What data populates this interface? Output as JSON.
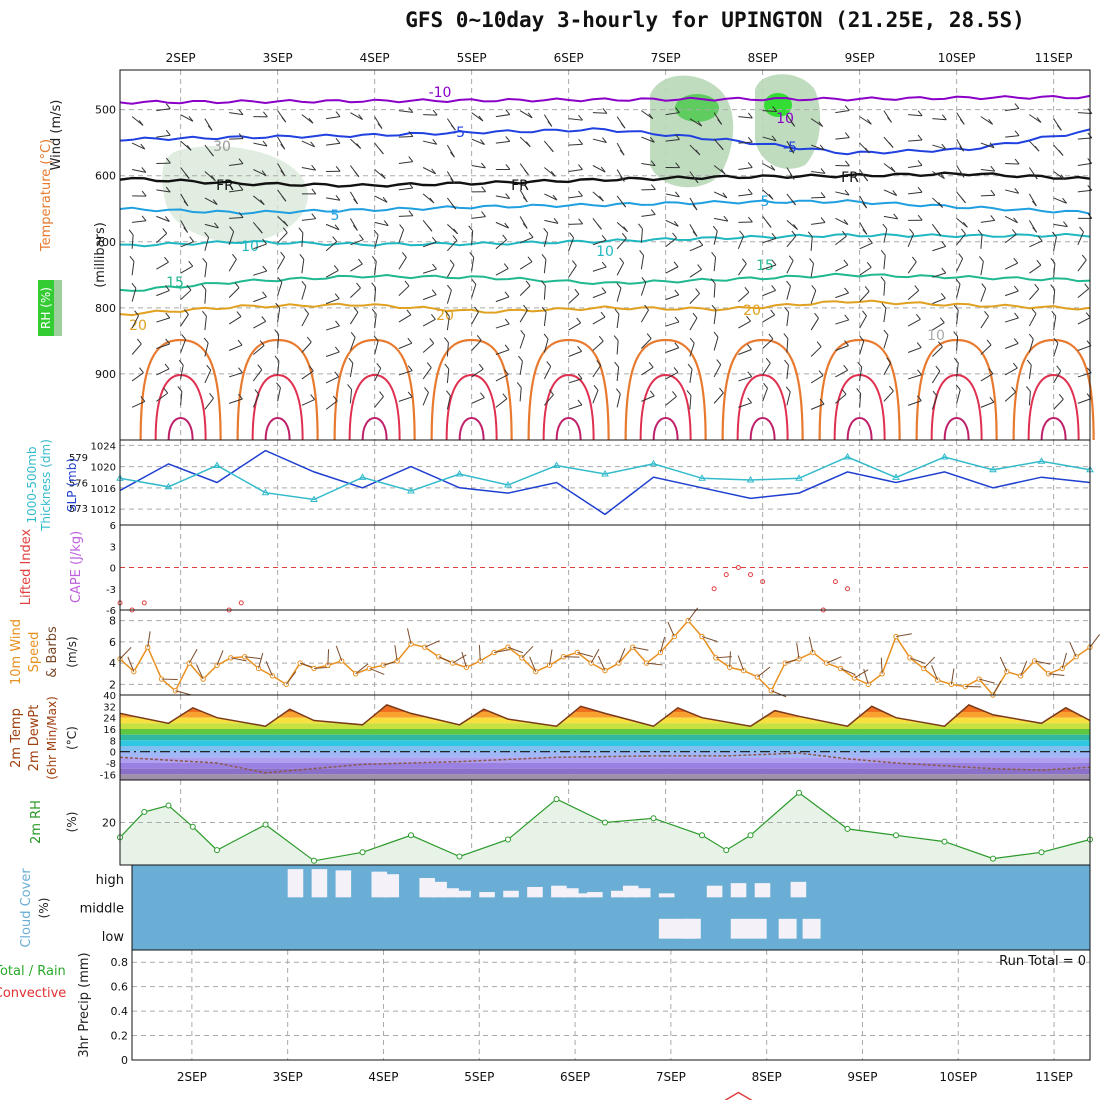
{
  "title": "GFS 0~10day 3-hourly for UPINGTON (21.25E, 28.5S)",
  "days": [
    "2SEP",
    "3SEP",
    "4SEP",
    "5SEP",
    "6SEP",
    "7SEP",
    "8SEP",
    "9SEP",
    "10SEP",
    "11SEP"
  ],
  "colors": {
    "temp": "#8b00c8",
    "rh": "#33cc33",
    "slp": "#1f3fd0",
    "thick": "#33bbcc",
    "li": "#e04040",
    "cape": "#c060e0",
    "wind": "#e89020",
    "rh2m": "#2a9a2a",
    "cloud": "#6aaed6",
    "precip_total": "#2aaa2a",
    "precip_conv": "#e03030"
  },
  "panels": {
    "upper": {
      "label_wind": "Wind (m/s)",
      "label_temp": "Temperature (°C)",
      "label_rh": "RH (%)",
      "ylabel": "(millibars)",
      "yticks": [
        500,
        600,
        700,
        800,
        900
      ]
    },
    "slp": {
      "label_thick": "1000-500mb Thickness (dm)",
      "label_slp": "SLP (mb)",
      "left_ticks": [
        579,
        576,
        573
      ],
      "right_ticks": [
        1024,
        1020,
        1016,
        1012
      ]
    },
    "cape": {
      "label_li": "Lifted Index",
      "label_cape": "CAPE (J/kg)",
      "yticks": [
        -6,
        -3,
        0,
        3,
        6
      ]
    },
    "wind10": {
      "label": "10m Wind Speed & Barbs",
      "unit": "(m/s)",
      "yticks": [
        8,
        6,
        4,
        2
      ]
    },
    "temp2m": {
      "label": "2m Temp 2m DewPt (6hr Min/Max)",
      "unit": "(°C)",
      "yticks": [
        40,
        32,
        24,
        16,
        8,
        0,
        -8,
        -16
      ]
    },
    "rh2m": {
      "label": "2m RH",
      "unit": "(%)",
      "yticks": [
        20
      ]
    },
    "cloud": {
      "label": "Cloud Cover",
      "unit": "(%)",
      "levels": [
        "high",
        "middle",
        "low"
      ]
    },
    "precip": {
      "label_total": "Total / Rain",
      "label_conv": "Convective",
      "ylabel": "3hr Precip (mm)",
      "yticks": [
        0,
        0.2,
        0.4,
        0.6,
        0.8
      ],
      "run_total": "Run Total = 0"
    }
  },
  "chart_data": [
    {
      "type": "line",
      "title": "Sounding time-height section",
      "series": [
        {
          "name": "-10°C isotherm (mb)",
          "values": [
            489,
            488,
            487,
            486,
            485,
            484,
            484,
            482,
            481
          ]
        },
        {
          "name": "-5°C isotherm (mb)",
          "values": [
            545,
            542,
            539,
            534,
            530,
            546,
            566,
            560,
            532
          ]
        },
        {
          "name": "FR (0°C) level (mb)",
          "values": [
            604,
            612,
            615,
            611,
            606,
            602,
            600,
            597,
            605
          ]
        },
        {
          "name": "5°C isotherm (mb)",
          "values": [
            650,
            656,
            652,
            647,
            644,
            640,
            639,
            648,
            656
          ]
        },
        {
          "name": "10°C isotherm (mb)",
          "values": [
            706,
            700,
            704,
            703,
            699,
            694,
            690,
            691,
            690
          ]
        },
        {
          "name": "15°C isotherm (mb)",
          "values": [
            775,
            760,
            752,
            754,
            763,
            757,
            750,
            754,
            758
          ]
        },
        {
          "name": "20°C isotherm (mb)",
          "values": [
            810,
            798,
            795,
            806,
            800,
            802,
            790,
            796,
            801
          ]
        }
      ],
      "ylim": [
        1000,
        440
      ],
      "contour_labels": [
        "-10",
        "10",
        "-5",
        "FR",
        "5",
        "10",
        "15",
        "20",
        "30",
        "10"
      ]
    },
    {
      "type": "line",
      "title": "SLP and 1000-500mb Thickness",
      "series": [
        {
          "name": "SLP (mb)",
          "x": [
            0,
            4,
            8,
            12,
            16,
            20,
            24,
            28,
            32,
            36,
            40,
            44,
            48,
            52,
            56,
            60,
            64,
            68,
            72,
            76,
            80
          ],
          "values": [
            1015.5,
            1020.5,
            1017,
            1023,
            1019,
            1016,
            1020,
            1016,
            1015,
            1017,
            1011,
            1018,
            1016,
            1014,
            1015,
            1019,
            1017,
            1019,
            1016,
            1018,
            1017
          ]
        },
        {
          "name": "Thickness (dm)",
          "x": [
            0,
            4,
            8,
            12,
            16,
            20,
            24,
            28,
            32,
            36,
            40,
            44,
            48,
            52,
            56,
            60,
            64,
            68,
            72,
            76,
            80
          ],
          "values": [
            576.5,
            575.5,
            578,
            574.8,
            574,
            576.6,
            575,
            577,
            575.7,
            578,
            577,
            578.2,
            576.5,
            576.3,
            576.5,
            579,
            576.6,
            579,
            577.5,
            578.5,
            577.5
          ]
        }
      ]
    },
    {
      "type": "line",
      "title": "Lifted Index",
      "x": [
        0,
        1,
        2,
        9,
        10,
        49,
        50,
        51,
        52,
        53,
        58,
        59,
        60
      ],
      "values": [
        5,
        6,
        5,
        6,
        5,
        3,
        1,
        0,
        1,
        2,
        6,
        2,
        3
      ],
      "ylim": [
        6,
        -6
      ]
    },
    {
      "type": "line",
      "title": "10m Wind Speed",
      "values": [
        4.4,
        3.2,
        5.5,
        2.5,
        1.4,
        4,
        2.5,
        3.8,
        4.5,
        4.6,
        3.5,
        2.8,
        2,
        4,
        3.5,
        3.8,
        4.2,
        3,
        3.5,
        3.8,
        4.2,
        5.8,
        5.5,
        4.6,
        4,
        3.6,
        4.2,
        5,
        5.5,
        4.5,
        3.2,
        3.8,
        4.6,
        5,
        4,
        3.3,
        4,
        5.5,
        4,
        5,
        6.5,
        8,
        6.5,
        4.5,
        3.6,
        3.3,
        2.7,
        1.4,
        4,
        4.4,
        5,
        4,
        3.5,
        2.6,
        2,
        3,
        6.5,
        4.5,
        3.5,
        2.4,
        2,
        1.8,
        2.5,
        1,
        3.2,
        2.8,
        4.2,
        3,
        3.5,
        4.6,
        5.5
      ],
      "ylim": [
        1,
        9
      ]
    },
    {
      "type": "area",
      "title": "2m Temperature",
      "x": [
        0,
        4,
        6,
        8,
        12,
        14,
        16,
        20,
        22,
        24,
        28,
        30,
        32,
        36,
        38,
        40,
        44,
        46,
        48,
        52,
        54,
        56,
        60,
        62,
        64,
        68,
        70,
        72,
        76,
        78,
        80
      ],
      "values": [
        27,
        20,
        31,
        24,
        18,
        30,
        22,
        19,
        33,
        27,
        19,
        30,
        23,
        18,
        32,
        27,
        18,
        31,
        24,
        18,
        29,
        25,
        18,
        32,
        24,
        18,
        33,
        26,
        20,
        31,
        22
      ]
    },
    {
      "type": "line",
      "title": "2m Dew Point",
      "x": [
        0,
        8,
        12,
        20,
        28,
        36,
        44,
        50,
        56,
        60,
        64,
        68,
        72,
        76,
        80
      ],
      "values": [
        -4,
        -8,
        -15,
        -9,
        -7,
        -4,
        -3,
        -3,
        -1,
        -5,
        -8,
        -10,
        -12,
        -13,
        -11
      ]
    },
    {
      "type": "area",
      "title": "2m RH",
      "x": [
        0,
        2,
        4,
        6,
        8,
        12,
        16,
        20,
        24,
        28,
        32,
        36,
        40,
        44,
        48,
        50,
        52,
        56,
        60,
        64,
        68,
        72,
        76,
        80
      ],
      "values": [
        13,
        25,
        28,
        18,
        7,
        19,
        2,
        6,
        14,
        4,
        12,
        31,
        20,
        22,
        14,
        7,
        14,
        34,
        17,
        14,
        11,
        3,
        6,
        12
      ],
      "ylim": [
        0,
        40
      ]
    },
    {
      "type": "bar",
      "title": "Cloud Cover (high)",
      "x": [
        13,
        15,
        17,
        20,
        21,
        24,
        25,
        26,
        27,
        29,
        31,
        33,
        35,
        36,
        37,
        38,
        40,
        41,
        42,
        44,
        48,
        50,
        52,
        55
      ],
      "values": [
        5,
        5,
        10,
        15,
        25,
        40,
        55,
        80,
        90,
        95,
        90,
        75,
        70,
        80,
        100,
        95,
        90,
        70,
        80,
        100,
        70,
        60,
        60,
        55
      ]
    },
    {
      "type": "bar",
      "title": "3hr Precip",
      "values": [
        0
      ],
      "ylim": [
        0,
        0.9
      ]
    }
  ]
}
